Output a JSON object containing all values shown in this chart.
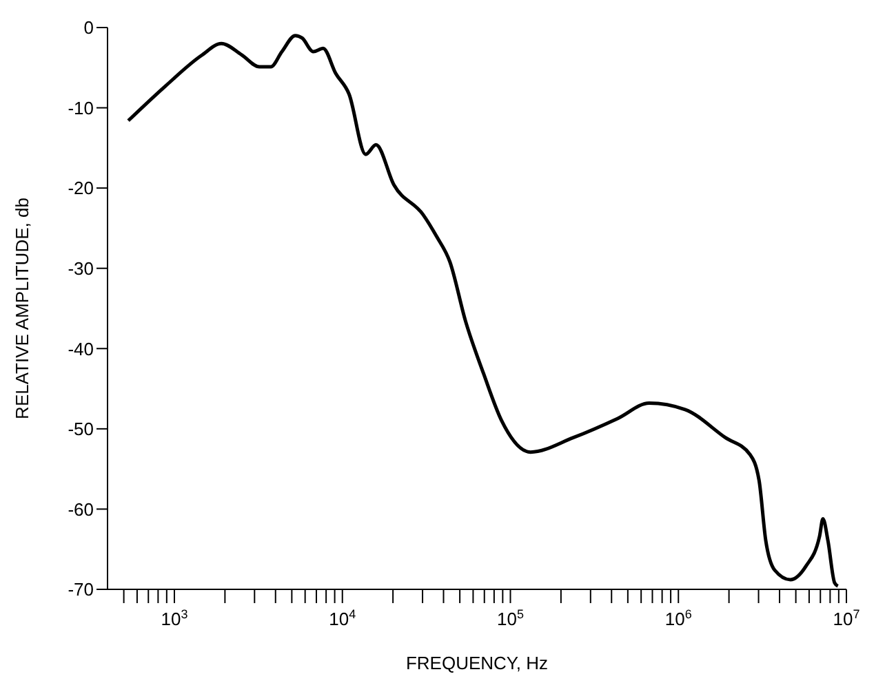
{
  "chart_data": {
    "type": "line",
    "xlabel": "FREQUENCY, Hz",
    "ylabel": "RELATIVE AMPLITUDE, db",
    "log": "x",
    "grid": false,
    "legend": false,
    "marker": "none",
    "line_style": "solid",
    "xlim": [
      400,
      10000000
    ],
    "ylim": [
      -70,
      0
    ],
    "yticks": [
      0,
      -10,
      -20,
      -30,
      -40,
      -50,
      -60,
      -70
    ],
    "xticks": [
      {
        "value": 500,
        "label": null
      },
      {
        "value": 600,
        "label": null
      },
      {
        "value": 700,
        "label": null
      },
      {
        "value": 800,
        "label": null
      },
      {
        "value": 900,
        "label": null
      },
      {
        "value": 1000,
        "label": "10$^{3}$"
      },
      {
        "value": 2000,
        "label": null
      },
      {
        "value": 3000,
        "label": null
      },
      {
        "value": 4000,
        "label": null
      },
      {
        "value": 5000,
        "label": null
      },
      {
        "value": 6000,
        "label": null
      },
      {
        "value": 7000,
        "label": null
      },
      {
        "value": 8000,
        "label": null
      },
      {
        "value": 9000,
        "label": null
      },
      {
        "value": 10000,
        "label": "10$^{4}$"
      },
      {
        "value": 20000,
        "label": null
      },
      {
        "value": 30000,
        "label": null
      },
      {
        "value": 40000,
        "label": null
      },
      {
        "value": 50000,
        "label": null
      },
      {
        "value": 60000,
        "label": null
      },
      {
        "value": 70000,
        "label": null
      },
      {
        "value": 80000,
        "label": null
      },
      {
        "value": 90000,
        "label": null
      },
      {
        "value": 100000,
        "label": "10$^{5}$"
      },
      {
        "value": 200000,
        "label": null
      },
      {
        "value": 300000,
        "label": null
      },
      {
        "value": 400000,
        "label": null
      },
      {
        "value": 500000,
        "label": null
      },
      {
        "value": 600000,
        "label": null
      },
      {
        "value": 700000,
        "label": null
      },
      {
        "value": 800000,
        "label": null
      },
      {
        "value": 900000,
        "label": null
      },
      {
        "value": 1000000,
        "label": "10$^{6}$"
      },
      {
        "value": 2000000,
        "label": null
      },
      {
        "value": 3000000,
        "label": null
      },
      {
        "value": 4000000,
        "label": null
      },
      {
        "value": 5000000,
        "label": null
      },
      {
        "value": 6000000,
        "label": null
      },
      {
        "value": 7000000,
        "label": null
      },
      {
        "value": 8000000,
        "label": null
      },
      {
        "value": 9000000,
        "label": null
      },
      {
        "value": 10000000,
        "label": "10$^{7}$"
      }
    ],
    "series": [
      {
        "color": "#000000",
        "x": [
          532,
          884,
          1445,
          1905,
          2512,
          3210,
          3748,
          4365,
          5248,
          5754,
          6710,
          7680,
          9120,
          10960,
          13760,
          15850,
          20260,
          30200,
          36300,
          43650,
          54100,
          69200,
          88300,
          131800,
          236600,
          436500,
          670000,
          1096000,
          1905000,
          2670000,
          3020000,
          3310000,
          3740000,
          4640000,
          5750000,
          6920000,
          7250000,
          7760000,
          8510000,
          8900000
        ],
        "values": [
          -11.6,
          -7.3,
          -3.5,
          -2.0,
          -3.4,
          -4.9,
          -4.9,
          -3.0,
          -1.0,
          -1.3,
          -3.0,
          -2.6,
          -5.7,
          -8.3,
          -15.8,
          -14.6,
          -19.6,
          -23.3,
          -26.0,
          -29.2,
          -36.6,
          -43.1,
          -48.9,
          -52.9,
          -51.1,
          -48.7,
          -46.8,
          -47.6,
          -51.1,
          -53.2,
          -56.4,
          -63.9,
          -67.6,
          -68.8,
          -67.1,
          -63.4,
          -61.2,
          -63.9,
          -69.2,
          -69.6
        ]
      }
    ]
  }
}
